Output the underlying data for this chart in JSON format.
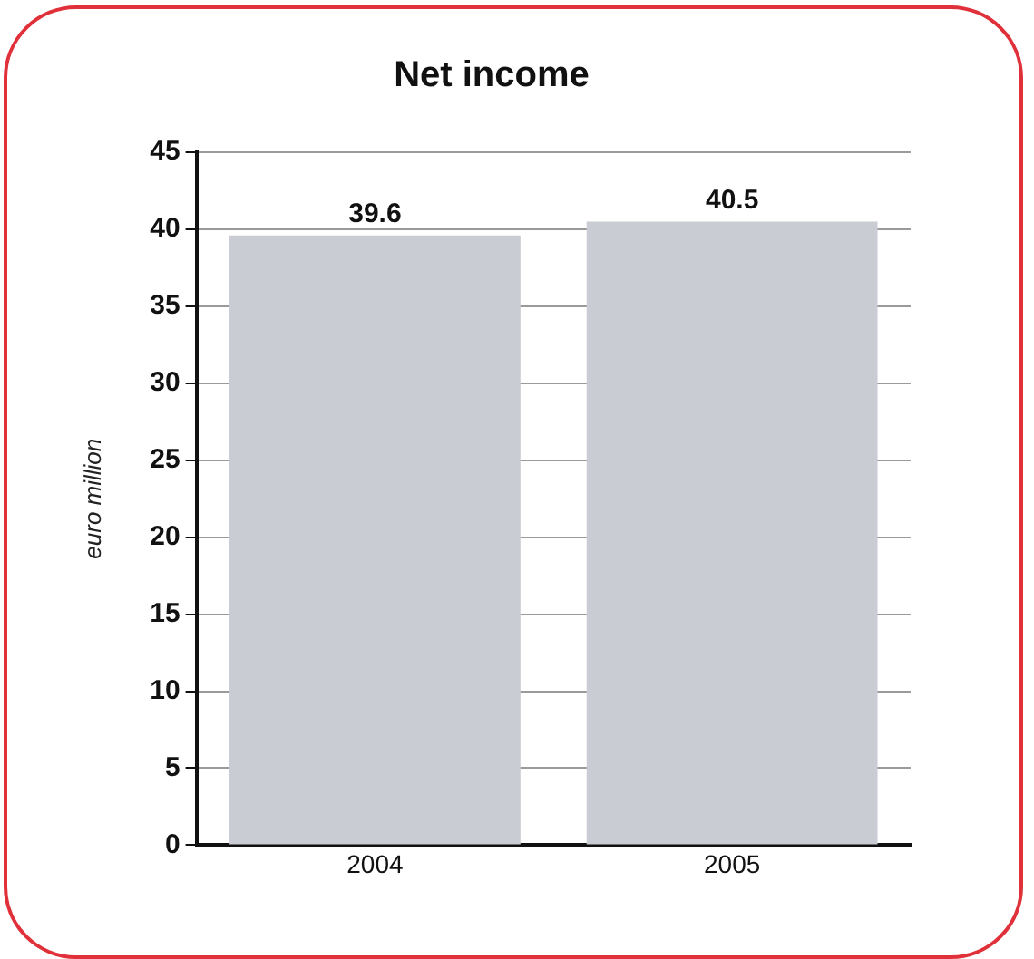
{
  "chart_data": {
    "type": "bar",
    "title": "Net income",
    "ylabel": "euro million",
    "categories": [
      "2004",
      "2005"
    ],
    "values": [
      39.6,
      40.5
    ],
    "color": "#c9ccd3",
    "ylim": [
      0,
      45
    ],
    "yticks": [
      0,
      5,
      10,
      15,
      20,
      25,
      30,
      35,
      40,
      45
    ],
    "grid": "y",
    "data_labels": true,
    "legend": false
  }
}
